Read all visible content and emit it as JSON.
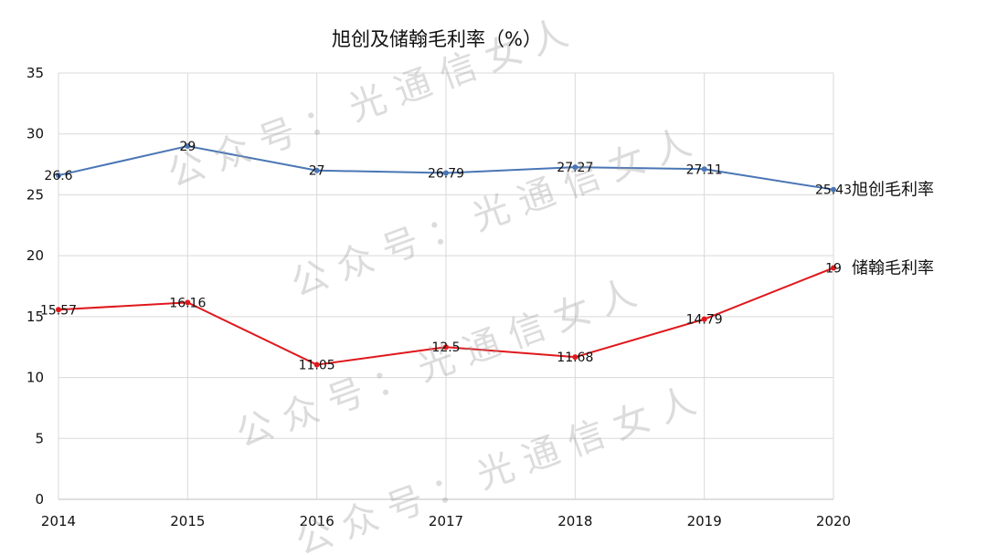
{
  "chart_data": {
    "type": "line",
    "title": "旭创及储翰毛利率（%）",
    "xlabel": "",
    "ylabel": "",
    "categories": [
      "2014",
      "2015",
      "2016",
      "2017",
      "2018",
      "2019",
      "2020"
    ],
    "ylim": [
      0,
      35
    ],
    "yticks": [
      0,
      5,
      10,
      15,
      20,
      25,
      30,
      35
    ],
    "grid": true,
    "series": [
      {
        "name": "旭创毛利率",
        "color": "#4a76b5",
        "values": [
          26.6,
          29,
          27,
          26.79,
          27.27,
          27.11,
          25.43
        ],
        "labels": [
          "26.6",
          "29",
          "27",
          "26.79",
          "27.27",
          "27.11",
          "25.43"
        ]
      },
      {
        "name": "储翰毛利率",
        "color": "#e0181c",
        "values": [
          15.57,
          16.16,
          11.05,
          12.5,
          11.68,
          14.79,
          19
        ],
        "labels": [
          "15.57",
          "16.16",
          "11.05",
          "12.5",
          "11.68",
          "14.79",
          "19"
        ]
      }
    ],
    "watermark": "公 众 号 ： 光 通 信 女 人"
  }
}
